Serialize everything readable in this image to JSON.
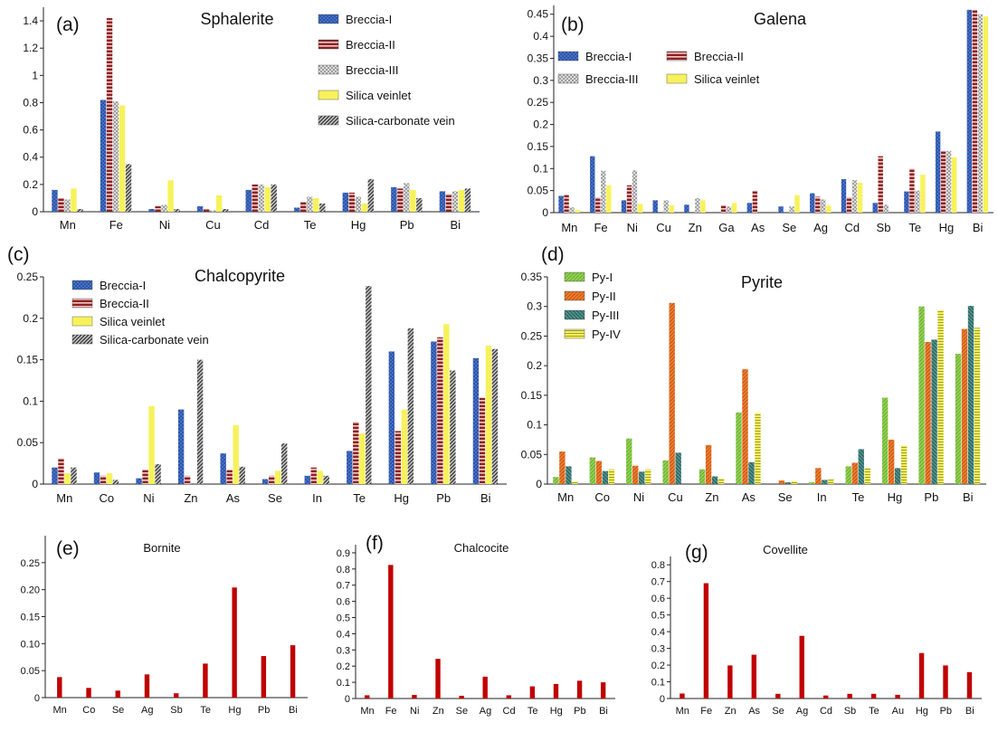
{
  "figure": {
    "colors": {
      "breccia1": "#4a76cf",
      "breccia2": "#8b2323",
      "breccia3": "#9e9e9e",
      "silica": "#f7f25a",
      "silicaCarb": "#3a3a3a",
      "py1": "#8fd14f",
      "py2": "#f07b2c",
      "py3": "#2f6e6a",
      "py4": "#f4ef58",
      "red": "#c00000"
    }
  },
  "chart_data": [
    {
      "id": "a",
      "panel": "(a)",
      "type": "bar",
      "title": "Sphalerite",
      "categories": [
        "Mn",
        "Fe",
        "Ni",
        "Cu",
        "Cd",
        "Te",
        "Hg",
        "Pb",
        "Bi"
      ],
      "ylim": [
        0,
        1.5
      ],
      "yticks": [
        "0",
        "0.2",
        "0.4",
        "0.6",
        "0.8",
        "1",
        "1.2",
        "1.4"
      ],
      "ytick_values": [
        0,
        0.2,
        0.4,
        0.6,
        0.8,
        1,
        1.2,
        1.4
      ],
      "legend_position": "top-right",
      "series": [
        {
          "name": "Breccia-I",
          "pattern": "breccia1",
          "values": [
            0.16,
            0.82,
            0.02,
            0.04,
            0.16,
            0.03,
            0.14,
            0.18,
            0.15
          ]
        },
        {
          "name": "Breccia-II",
          "pattern": "breccia2",
          "values": [
            0.1,
            1.42,
            0.04,
            0.02,
            0.2,
            0.07,
            0.14,
            0.17,
            0.13
          ]
        },
        {
          "name": "Breccia-III",
          "pattern": "breccia3",
          "values": [
            0.09,
            0.81,
            0.05,
            0.01,
            0.2,
            0.11,
            0.11,
            0.21,
            0.15
          ]
        },
        {
          "name": "Silica veinlet",
          "pattern": "silica",
          "values": [
            0.17,
            0.78,
            0.23,
            0.12,
            0.18,
            0.1,
            0.06,
            0.16,
            0.16
          ]
        },
        {
          "name": "Silica-carbonate vein",
          "pattern": "silicaCarb",
          "values": [
            0.02,
            0.35,
            0.02,
            0.02,
            0.2,
            0.06,
            0.24,
            0.1,
            0.17
          ]
        }
      ]
    },
    {
      "id": "b",
      "panel": "(b)",
      "type": "bar",
      "title": "Galena",
      "categories": [
        "Mn",
        "Fe",
        "Ni",
        "Cu",
        "Zn",
        "Ga",
        "As",
        "Se",
        "Ag",
        "Cd",
        "Sb",
        "Te",
        "Hg",
        "Bi"
      ],
      "ylim": [
        0,
        0.47
      ],
      "yticks": [
        "0",
        "0.05",
        "0.1",
        "0.15",
        "0.2",
        "0.25",
        "0.3",
        "0.35",
        "0.4",
        "0.45"
      ],
      "ytick_values": [
        0,
        0.05,
        0.1,
        0.15,
        0.2,
        0.25,
        0.3,
        0.35,
        0.4,
        0.45
      ],
      "legend_position": "top-center",
      "series": [
        {
          "name": "Breccia-I",
          "pattern": "breccia1",
          "values": [
            0.038,
            0.128,
            0.028,
            0.028,
            0.018,
            0.0,
            0.022,
            0.014,
            0.044,
            0.076,
            0.022,
            0.048,
            0.184,
            0.46
          ]
        },
        {
          "name": "Breccia-II",
          "pattern": "breccia2",
          "values": [
            0.04,
            0.035,
            0.062,
            0.0,
            0.0,
            0.016,
            0.05,
            0.0,
            0.036,
            0.035,
            0.128,
            0.1,
            0.14,
            0.46
          ]
        },
        {
          "name": "Breccia-III",
          "pattern": "breccia3",
          "values": [
            0.012,
            0.095,
            0.096,
            0.028,
            0.033,
            0.014,
            0.0,
            0.014,
            0.03,
            0.074,
            0.018,
            0.05,
            0.14,
            0.45
          ]
        },
        {
          "name": "Silica veinlet",
          "pattern": "silica",
          "values": [
            0.006,
            0.062,
            0.02,
            0.016,
            0.028,
            0.022,
            0.0,
            0.04,
            0.016,
            0.068,
            0.0,
            0.086,
            0.125,
            0.445
          ]
        }
      ]
    },
    {
      "id": "c",
      "panel": "(c)",
      "type": "bar",
      "title": "Chalcopyrite",
      "categories": [
        "Mn",
        "Co",
        "Ni",
        "Zn",
        "As",
        "Se",
        "In",
        "Te",
        "Hg",
        "Pb",
        "Bi"
      ],
      "ylim": [
        0,
        0.25
      ],
      "yticks": [
        "0",
        "0.05",
        "0.1",
        "0.15",
        "0.2",
        "0.25"
      ],
      "ytick_values": [
        0,
        0.05,
        0.1,
        0.15,
        0.2,
        0.25
      ],
      "legend_position": "top-left",
      "series": [
        {
          "name": "Breccia-I",
          "pattern": "breccia1",
          "values": [
            0.02,
            0.014,
            0.007,
            0.09,
            0.037,
            0.006,
            0.01,
            0.04,
            0.16,
            0.172,
            0.152
          ]
        },
        {
          "name": "Breccia-II",
          "pattern": "breccia2",
          "values": [
            0.031,
            0.01,
            0.017,
            0.01,
            0.017,
            0.01,
            0.02,
            0.075,
            0.064,
            0.177,
            0.104
          ]
        },
        {
          "name": "Silica veinlet",
          "pattern": "silica",
          "values": [
            0.013,
            0.013,
            0.094,
            0.0,
            0.071,
            0.016,
            0.016,
            0.061,
            0.09,
            0.193,
            0.167
          ]
        },
        {
          "name": "Silica-carbonate vein",
          "pattern": "silicaCarb",
          "values": [
            0.02,
            0.005,
            0.024,
            0.15,
            0.021,
            0.049,
            0.01,
            0.239,
            0.188,
            0.137,
            0.163
          ]
        }
      ]
    },
    {
      "id": "d",
      "panel": "(d)",
      "type": "bar",
      "title": "Pyrite",
      "categories": [
        "Mn",
        "Co",
        "Ni",
        "Cu",
        "Zn",
        "As",
        "Se",
        "In",
        "Te",
        "Hg",
        "Pb",
        "Bi"
      ],
      "ylim": [
        0,
        0.35
      ],
      "yticks": [
        "0",
        "0.05",
        "0.1",
        "0.15",
        "0.2",
        "0.25",
        "0.3",
        "0.35"
      ],
      "ytick_values": [
        0,
        0.05,
        0.1,
        0.15,
        0.2,
        0.25,
        0.3,
        0.35
      ],
      "legend_position": "top-left",
      "series": [
        {
          "name": "Py-I",
          "pattern": "py1",
          "values": [
            0.012,
            0.045,
            0.077,
            0.04,
            0.025,
            0.121,
            0.0,
            0.003,
            0.03,
            0.146,
            0.3,
            0.22
          ]
        },
        {
          "name": "Py-II",
          "pattern": "py2",
          "values": [
            0.055,
            0.039,
            0.031,
            0.306,
            0.066,
            0.194,
            0.006,
            0.027,
            0.036,
            0.075,
            0.24,
            0.262
          ]
        },
        {
          "name": "Py-III",
          "pattern": "py3",
          "values": [
            0.03,
            0.022,
            0.021,
            0.053,
            0.013,
            0.037,
            0.003,
            0.007,
            0.059,
            0.027,
            0.244,
            0.301
          ]
        },
        {
          "name": "Py-IV",
          "pattern": "py4",
          "values": [
            0.004,
            0.025,
            0.025,
            0.0,
            0.009,
            0.12,
            0.005,
            0.008,
            0.027,
            0.065,
            0.294,
            0.264
          ]
        }
      ]
    },
    {
      "id": "e",
      "panel": "(e)",
      "type": "bar",
      "title": "Bornite",
      "categories": [
        "Mn",
        "Co",
        "Se",
        "Ag",
        "Sb",
        "Te",
        "Hg",
        "Pb",
        "Bi"
      ],
      "ylim": [
        0,
        0.3
      ],
      "yticks": [
        "0",
        "0.05",
        "0.10",
        "0.15",
        "0.20",
        "0.25"
      ],
      "ytick_values": [
        0,
        0.05,
        0.1,
        0.15,
        0.2,
        0.25
      ],
      "series": [
        {
          "name": "Bornite",
          "pattern": "red",
          "values": [
            0.038,
            0.018,
            0.013,
            0.043,
            0.008,
            0.063,
            0.204,
            0.077,
            0.097
          ]
        }
      ]
    },
    {
      "id": "f",
      "panel": "(f)",
      "type": "bar",
      "title": "Chalcocite",
      "categories": [
        "Mn",
        "Fe",
        "Ni",
        "Zn",
        "Se",
        "Ag",
        "Cd",
        "Te",
        "Hg",
        "Pb",
        "Bi"
      ],
      "ylim": [
        0,
        0.95
      ],
      "yticks": [
        "0",
        "0.1",
        "0.2",
        "0.3",
        "0.4",
        "0.5",
        "0.6",
        "0.7",
        "0.8",
        "0.9"
      ],
      "ytick_values": [
        0,
        0.1,
        0.2,
        0.3,
        0.4,
        0.5,
        0.6,
        0.7,
        0.8,
        0.9
      ],
      "series": [
        {
          "name": "Chalcocite",
          "pattern": "red",
          "values": [
            0.02,
            0.825,
            0.022,
            0.245,
            0.017,
            0.135,
            0.02,
            0.075,
            0.09,
            0.11,
            0.1
          ]
        }
      ]
    },
    {
      "id": "g",
      "panel": "(g)",
      "type": "bar",
      "title": "Covellite",
      "categories": [
        "Mn",
        "Fe",
        "Zn",
        "As",
        "Se",
        "Ag",
        "Cd",
        "Sb",
        "Te",
        "Au",
        "Hg",
        "Pb",
        "Bi"
      ],
      "ylim": [
        0,
        0.85
      ],
      "yticks": [
        "0",
        "0.1",
        "0.2",
        "0.3",
        "0.4",
        "0.5",
        "0.6",
        "0.7",
        "0.8"
      ],
      "ytick_values": [
        0,
        0.1,
        0.2,
        0.3,
        0.4,
        0.5,
        0.6,
        0.7,
        0.8
      ],
      "series": [
        {
          "name": "Covellite",
          "pattern": "red",
          "values": [
            0.03,
            0.69,
            0.198,
            0.262,
            0.028,
            0.375,
            0.018,
            0.028,
            0.028,
            0.022,
            0.272,
            0.198,
            0.158
          ]
        }
      ]
    }
  ]
}
